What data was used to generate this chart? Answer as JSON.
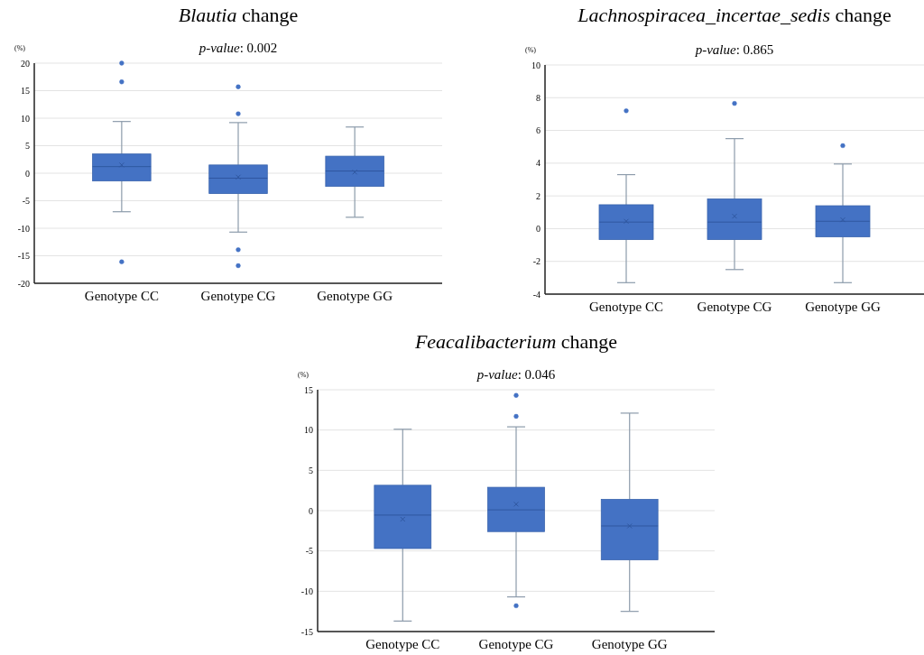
{
  "chart_data": [
    {
      "type": "box",
      "title": "Blautia change",
      "subtitle": "p-value: 0.002",
      "ylabel": "(%)",
      "categories": [
        "Genotype CC",
        "Genotype CG",
        "Genotype GG"
      ],
      "color": "#4472c4",
      "ylim": [
        -20,
        20
      ],
      "yticks": [
        -20,
        -15,
        -10,
        -5,
        0,
        5,
        10,
        15,
        20
      ],
      "grid": "y",
      "boxes": [
        {
          "low": -7.0,
          "q1": -1.4,
          "median": 1.2,
          "q3": 3.5,
          "high": 9.4,
          "mean": 1.5,
          "outliers": [
            20,
            16.6,
            -16.1
          ]
        },
        {
          "low": -10.7,
          "q1": -3.7,
          "median": -0.9,
          "q3": 1.5,
          "high": 9.2,
          "mean": -0.7,
          "outliers": [
            15.7,
            10.8,
            -13.9,
            -16.8
          ]
        },
        {
          "low": -8.0,
          "q1": -2.4,
          "median": 0.4,
          "q3": 3.1,
          "high": 8.4,
          "mean": 0.2
        }
      ]
    },
    {
      "type": "box",
      "title": "Lachnospiracea_incertae_sedis change",
      "subtitle": "p-value: 0.865",
      "ylabel": "(%)",
      "categories": [
        "Genotype CC",
        "Genotype CG",
        "Genotype GG"
      ],
      "color": "#4472c4",
      "ylim": [
        -4,
        10
      ],
      "yticks": [
        -4,
        -2,
        0,
        2,
        4,
        6,
        8,
        10
      ],
      "grid": "y",
      "boxes": [
        {
          "low": -3.3,
          "q1": -0.67,
          "median": 0.4,
          "q3": 1.46,
          "high": 3.3,
          "mean": 0.45,
          "outliers": [
            7.2
          ]
        },
        {
          "low": -2.5,
          "q1": -0.67,
          "median": 0.4,
          "q3": 1.82,
          "high": 5.5,
          "mean": 0.76,
          "outliers": [
            7.65
          ]
        },
        {
          "low": -3.3,
          "q1": -0.5,
          "median": 0.45,
          "q3": 1.4,
          "high": 3.95,
          "mean": 0.54,
          "outliers": [
            5.07
          ]
        }
      ]
    },
    {
      "type": "box",
      "title": "Feacalibacterium change",
      "subtitle": "p-value: 0.046",
      "ylabel": "(%)",
      "categories": [
        "Genotype CC",
        "Genotype CG",
        "Genotype GG"
      ],
      "color": "#4472c4",
      "ylim": [
        -15,
        15
      ],
      "yticks": [
        -15,
        -10,
        -5,
        0,
        5,
        10,
        15
      ],
      "grid": "y",
      "boxes": [
        {
          "low": -13.7,
          "q1": -4.7,
          "median": -0.55,
          "q3": 3.15,
          "high": 10.1,
          "mean": -1.06
        },
        {
          "low": -10.7,
          "q1": -2.6,
          "median": 0.1,
          "q3": 2.9,
          "high": 10.4,
          "mean": 0.8,
          "outliers": [
            14.3,
            11.7,
            -11.8
          ]
        },
        {
          "low": -12.5,
          "q1": -6.1,
          "median": -1.9,
          "q3": 1.4,
          "high": 12.1,
          "mean": -1.9
        }
      ]
    }
  ]
}
